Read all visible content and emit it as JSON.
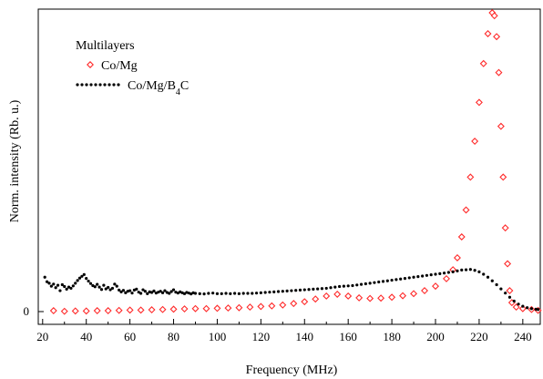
{
  "chart_data": {
    "type": "scatter",
    "xlabel": "Frequency (MHz)",
    "ylabel": "Norm. intensity (Rb. u.)",
    "xlim": [
      18,
      248
    ],
    "ylim": [
      0,
      100
    ],
    "x_ticks": [
      20,
      40,
      60,
      80,
      100,
      120,
      140,
      160,
      180,
      200,
      220,
      240
    ],
    "y_ticks": [
      0
    ],
    "grid": false,
    "legend": {
      "title": "Multilayers",
      "placement": "top-left"
    },
    "series": [
      {
        "name": "Co/Mg",
        "marker": "open-diamond",
        "color": "#ff2a2a",
        "points": [
          [
            25,
            0.3
          ],
          [
            30,
            0.1
          ],
          [
            35,
            0.2
          ],
          [
            40,
            0.2
          ],
          [
            45,
            0.3
          ],
          [
            50,
            0.3
          ],
          [
            55,
            0.4
          ],
          [
            60,
            0.5
          ],
          [
            65,
            0.5
          ],
          [
            70,
            0.6
          ],
          [
            75,
            0.7
          ],
          [
            80,
            0.8
          ],
          [
            85,
            0.9
          ],
          [
            90,
            1.0
          ],
          [
            95,
            1.0
          ],
          [
            100,
            1.1
          ],
          [
            105,
            1.2
          ],
          [
            110,
            1.3
          ],
          [
            115,
            1.5
          ],
          [
            120,
            1.7
          ],
          [
            125,
            1.9
          ],
          [
            130,
            2.2
          ],
          [
            135,
            2.7
          ],
          [
            140,
            3.3
          ],
          [
            145,
            4.2
          ],
          [
            150,
            5.2
          ],
          [
            155,
            5.8
          ],
          [
            160,
            5.2
          ],
          [
            165,
            4.6
          ],
          [
            170,
            4.4
          ],
          [
            175,
            4.5
          ],
          [
            180,
            4.8
          ],
          [
            185,
            5.3
          ],
          [
            190,
            6.0
          ],
          [
            195,
            7.0
          ],
          [
            200,
            8.5
          ],
          [
            205,
            11
          ],
          [
            208,
            14
          ],
          [
            210,
            18
          ],
          [
            212,
            25
          ],
          [
            214,
            34
          ],
          [
            216,
            45
          ],
          [
            218,
            57
          ],
          [
            220,
            70
          ],
          [
            222,
            83
          ],
          [
            224,
            93
          ],
          [
            226,
            100
          ],
          [
            227,
            99
          ],
          [
            228,
            92
          ],
          [
            229,
            80
          ],
          [
            230,
            62
          ],
          [
            231,
            45
          ],
          [
            232,
            28
          ],
          [
            233,
            16
          ],
          [
            234,
            7
          ],
          [
            235,
            3
          ],
          [
            237,
            1.5
          ],
          [
            240,
            1
          ],
          [
            244,
            0.7
          ],
          [
            247,
            0.4
          ]
        ]
      },
      {
        "name": "Co/Mg/B4C",
        "name_main": "Co/Mg/B",
        "name_sub": "4",
        "name_end": "C",
        "marker": "filled-dot",
        "color": "#000000",
        "points": [
          [
            21,
            11.5
          ],
          [
            22,
            10
          ],
          [
            23,
            9.5
          ],
          [
            24,
            8.5
          ],
          [
            25,
            9.2
          ],
          [
            26,
            8
          ],
          [
            27,
            8.8
          ],
          [
            28,
            7
          ],
          [
            29,
            9
          ],
          [
            30,
            8.4
          ],
          [
            31,
            7.5
          ],
          [
            32,
            8.2
          ],
          [
            33,
            7.8
          ],
          [
            34,
            8.6
          ],
          [
            35,
            9.5
          ],
          [
            36,
            10.4
          ],
          [
            37,
            11.2
          ],
          [
            38,
            11.8
          ],
          [
            39,
            12.4
          ],
          [
            40,
            11.1
          ],
          [
            41,
            10.2
          ],
          [
            42,
            9.4
          ],
          [
            43,
            8.7
          ],
          [
            44,
            8.3
          ],
          [
            45,
            9.1
          ],
          [
            46,
            8.2
          ],
          [
            47,
            7.4
          ],
          [
            48,
            8.8
          ],
          [
            49,
            7.6
          ],
          [
            50,
            8.1
          ],
          [
            51,
            7.3
          ],
          [
            52,
            7.8
          ],
          [
            53,
            9.2
          ],
          [
            54,
            8.5
          ],
          [
            55,
            7.2
          ],
          [
            56,
            6.6
          ],
          [
            57,
            7.1
          ],
          [
            58,
            6.3
          ],
          [
            59,
            6.8
          ],
          [
            60,
            7.0
          ],
          [
            61,
            6.2
          ],
          [
            62,
            7.2
          ],
          [
            63,
            7.5
          ],
          [
            64,
            6.5
          ],
          [
            65,
            6.1
          ],
          [
            66,
            7.3
          ],
          [
            67,
            6.8
          ],
          [
            68,
            6.0
          ],
          [
            69,
            6.6
          ],
          [
            70,
            6.4
          ],
          [
            71,
            6.9
          ],
          [
            72,
            6.2
          ],
          [
            73,
            6.5
          ],
          [
            74,
            6.8
          ],
          [
            75,
            6.3
          ],
          [
            76,
            7.0
          ],
          [
            77,
            6.4
          ],
          [
            78,
            6.1
          ],
          [
            79,
            6.7
          ],
          [
            80,
            7.3
          ],
          [
            81,
            6.5
          ],
          [
            82,
            6.2
          ],
          [
            83,
            6.6
          ],
          [
            84,
            6.3
          ],
          [
            85,
            6.0
          ],
          [
            86,
            6.4
          ],
          [
            87,
            6.2
          ],
          [
            88,
            5.9
          ],
          [
            89,
            6.3
          ],
          [
            90,
            6.1
          ],
          [
            92,
            6.0
          ],
          [
            94,
            5.9
          ],
          [
            96,
            6.1
          ],
          [
            98,
            6.2
          ],
          [
            100,
            6.0
          ],
          [
            102,
            6.0
          ],
          [
            104,
            6.1
          ],
          [
            106,
            6.0
          ],
          [
            108,
            6.1
          ],
          [
            110,
            6.0
          ],
          [
            112,
            6.1
          ],
          [
            114,
            6.1
          ],
          [
            116,
            6.1
          ],
          [
            118,
            6.2
          ],
          [
            120,
            6.3
          ],
          [
            122,
            6.4
          ],
          [
            124,
            6.5
          ],
          [
            126,
            6.6
          ],
          [
            128,
            6.7
          ],
          [
            130,
            6.8
          ],
          [
            132,
            6.9
          ],
          [
            134,
            7.0
          ],
          [
            136,
            7.1
          ],
          [
            138,
            7.2
          ],
          [
            140,
            7.3
          ],
          [
            142,
            7.4
          ],
          [
            144,
            7.5
          ],
          [
            146,
            7.6
          ],
          [
            148,
            7.7
          ],
          [
            150,
            7.8
          ],
          [
            152,
            8.0
          ],
          [
            154,
            8.2
          ],
          [
            156,
            8.4
          ],
          [
            158,
            8.5
          ],
          [
            160,
            8.6
          ],
          [
            162,
            8.7
          ],
          [
            164,
            8.9
          ],
          [
            166,
            9.1
          ],
          [
            168,
            9.3
          ],
          [
            170,
            9.5
          ],
          [
            172,
            9.7
          ],
          [
            174,
            9.9
          ],
          [
            176,
            10.1
          ],
          [
            178,
            10.3
          ],
          [
            180,
            10.5
          ],
          [
            182,
            10.7
          ],
          [
            184,
            10.9
          ],
          [
            186,
            11.1
          ],
          [
            188,
            11.3
          ],
          [
            190,
            11.5
          ],
          [
            192,
            11.7
          ],
          [
            194,
            11.9
          ],
          [
            196,
            12.1
          ],
          [
            198,
            12.3
          ],
          [
            200,
            12.5
          ],
          [
            202,
            12.7
          ],
          [
            204,
            12.9
          ],
          [
            206,
            13.1
          ],
          [
            208,
            13.3
          ],
          [
            210,
            13.6
          ],
          [
            212,
            13.9
          ],
          [
            214,
            14.0
          ],
          [
            216,
            14.1
          ],
          [
            218,
            13.8
          ],
          [
            220,
            13.3
          ],
          [
            222,
            12.5
          ],
          [
            224,
            11.5
          ],
          [
            226,
            10.3
          ],
          [
            228,
            9.0
          ],
          [
            230,
            7.6
          ],
          [
            232,
            6.2
          ],
          [
            234,
            4.8
          ],
          [
            236,
            3.5
          ],
          [
            238,
            2.5
          ],
          [
            240,
            1.8
          ],
          [
            242,
            1.3
          ],
          [
            244,
            1.0
          ],
          [
            246,
            0.8
          ],
          [
            247,
            0.7
          ]
        ]
      }
    ]
  }
}
